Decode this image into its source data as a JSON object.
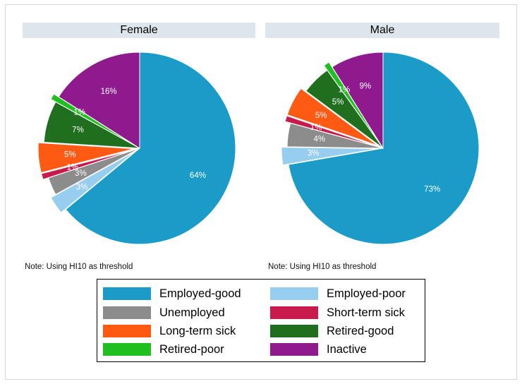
{
  "chart_data": [
    {
      "type": "pie",
      "title": "Female",
      "note": "Note: Using HI10 as threshold",
      "slices": [
        {
          "category": "Employed-good",
          "value": 64,
          "label": "64%",
          "exploded": false
        },
        {
          "category": "Employed-poor",
          "value": 3,
          "label": "3%",
          "exploded": true
        },
        {
          "category": "Unemployed",
          "value": 3,
          "label": "3%",
          "exploded": false
        },
        {
          "category": "Short-term sick",
          "value": 1,
          "label": "1%",
          "exploded": true
        },
        {
          "category": "Long-term sick",
          "value": 5,
          "label": "5%",
          "exploded": true
        },
        {
          "category": "Retired-good",
          "value": 7,
          "label": "7%",
          "exploded": false
        },
        {
          "category": "Retired-poor",
          "value": 1,
          "label": "1%",
          "exploded": true
        },
        {
          "category": "Inactive",
          "value": 16,
          "label": "16%",
          "exploded": false
        }
      ]
    },
    {
      "type": "pie",
      "title": "Male",
      "note": "Note: Using HI10 as threshold",
      "slices": [
        {
          "category": "Employed-good",
          "value": 73,
          "label": "73%",
          "exploded": false
        },
        {
          "category": "Employed-poor",
          "value": 3,
          "label": "3%",
          "exploded": true
        },
        {
          "category": "Unemployed",
          "value": 4,
          "label": "4%",
          "exploded": false
        },
        {
          "category": "Short-term sick",
          "value": 1,
          "label": "1%",
          "exploded": true
        },
        {
          "category": "Long-term sick",
          "value": 5,
          "label": "5%",
          "exploded": true
        },
        {
          "category": "Retired-good",
          "value": 5,
          "label": "5%",
          "exploded": false
        },
        {
          "category": "Retired-poor",
          "value": 1,
          "label": "1%",
          "exploded": true
        },
        {
          "category": "Inactive",
          "value": 9,
          "label": "9%",
          "exploded": false
        }
      ]
    }
  ],
  "legend": {
    "items": [
      {
        "label": "Employed-good",
        "color": "#1a9bc8"
      },
      {
        "label": "Employed-poor",
        "color": "#97cdee"
      },
      {
        "label": "Unemployed",
        "color": "#8c8c8c"
      },
      {
        "label": "Short-term sick",
        "color": "#c91a4e"
      },
      {
        "label": "Long-term sick",
        "color": "#ff5a14"
      },
      {
        "label": "Retired-good",
        "color": "#1f6f1f"
      },
      {
        "label": "Retired-poor",
        "color": "#1fbf1f"
      },
      {
        "label": "Inactive",
        "color": "#8e1a8e"
      }
    ]
  }
}
